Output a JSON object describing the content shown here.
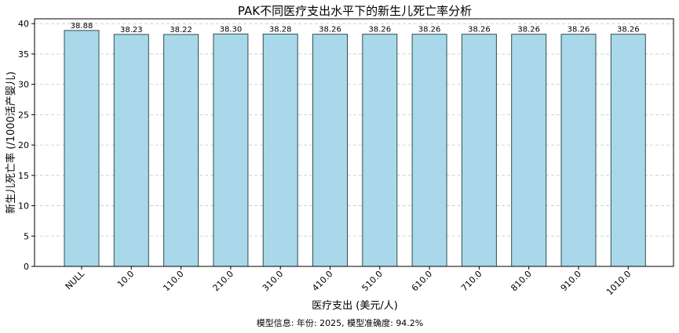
{
  "chart_data": {
    "type": "bar",
    "title": "PAK不同医疗支出水平下的新生儿死亡率分析",
    "xlabel": "医疗支出 (美元/人)",
    "ylabel": "新生儿死亡率 (/1000活产婴儿)",
    "categories": [
      "NULL",
      "10.0",
      "110.0",
      "210.0",
      "310.0",
      "410.0",
      "510.0",
      "610.0",
      "710.0",
      "810.0",
      "910.0",
      "1010.0"
    ],
    "values": [
      38.88,
      38.23,
      38.22,
      38.3,
      38.28,
      38.26,
      38.26,
      38.26,
      38.26,
      38.26,
      38.26,
      38.26
    ],
    "value_labels": [
      "38.88",
      "38.23",
      "38.22",
      "38.30",
      "38.28",
      "38.26",
      "38.26",
      "38.26",
      "38.26",
      "38.26",
      "38.26",
      "38.26"
    ],
    "ylim": [
      0,
      40.8
    ],
    "yticks": [
      0,
      5,
      10,
      15,
      20,
      25,
      30,
      35,
      40
    ],
    "grid": true,
    "bar_color": "#a8d8ea",
    "bar_edge_color": "#2f4f4f",
    "footnote": "模型信息: 年份: 2025, 模型准确度: 94.2%"
  }
}
